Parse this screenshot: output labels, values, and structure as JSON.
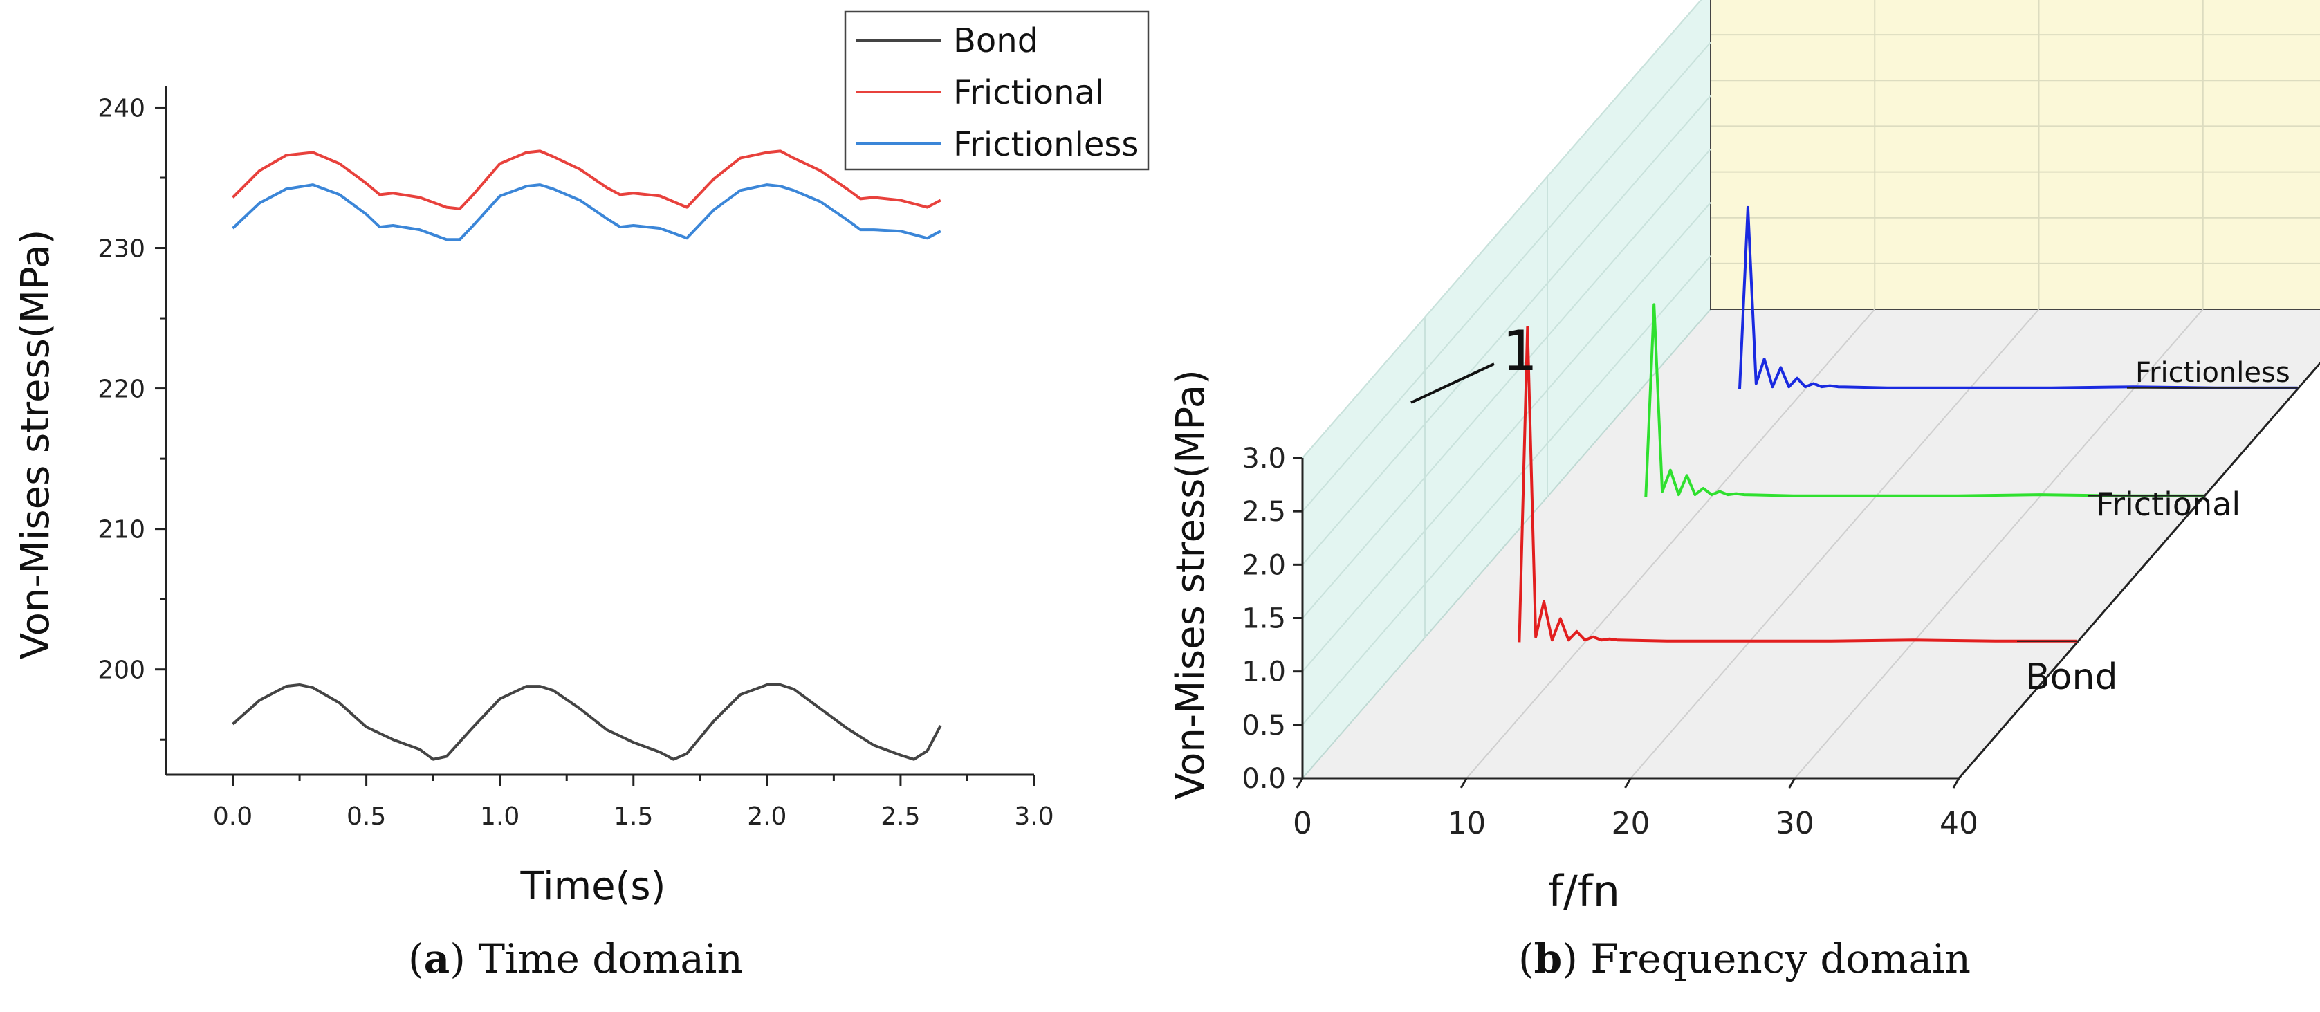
{
  "captions": {
    "a_label": "a",
    "a_text": "Time domain",
    "b_label": "b",
    "b_text": "Frequency domain"
  },
  "chart_data": [
    {
      "id": "a",
      "type": "line",
      "title": "",
      "xlabel": "Time(s)",
      "ylabel": "Von-Mises stress(MPa)",
      "xlim": [
        -0.25,
        3.0
      ],
      "ylim": [
        192.5,
        241.5
      ],
      "xticks": [
        "0.0",
        "0.5",
        "1.0",
        "1.5",
        "2.0",
        "2.5",
        "3.0"
      ],
      "yticks": [
        "200",
        "210",
        "220",
        "230",
        "240"
      ],
      "grid": false,
      "legend": {
        "placement": "top-right",
        "entries": [
          "Bond",
          "Frictional",
          "Frictionless"
        ]
      },
      "series": [
        {
          "name": "Bond",
          "color": "#444444",
          "x": [
            0.0,
            0.1,
            0.2,
            0.25,
            0.3,
            0.4,
            0.5,
            0.6,
            0.7,
            0.75,
            0.8,
            0.9,
            1.0,
            1.1,
            1.15,
            1.2,
            1.3,
            1.4,
            1.5,
            1.6,
            1.65,
            1.7,
            1.8,
            1.9,
            2.0,
            2.05,
            2.1,
            2.2,
            2.3,
            2.4,
            2.5,
            2.55,
            2.6,
            2.65
          ],
          "y": [
            196.1,
            197.8,
            198.8,
            198.9,
            198.7,
            197.6,
            195.9,
            195.0,
            194.3,
            193.6,
            193.8,
            195.9,
            197.9,
            198.8,
            198.8,
            198.5,
            197.2,
            195.7,
            194.8,
            194.1,
            193.6,
            194.0,
            196.3,
            198.2,
            198.9,
            198.9,
            198.6,
            197.2,
            195.8,
            194.6,
            193.9,
            193.6,
            194.2,
            196.0
          ]
        },
        {
          "name": "Frictional",
          "color": "#e8413c",
          "x": [
            0.0,
            0.1,
            0.2,
            0.3,
            0.4,
            0.5,
            0.55,
            0.6,
            0.7,
            0.8,
            0.85,
            0.9,
            1.0,
            1.1,
            1.15,
            1.2,
            1.3,
            1.4,
            1.45,
            1.5,
            1.6,
            1.7,
            1.8,
            1.9,
            2.0,
            2.05,
            2.1,
            2.2,
            2.3,
            2.35,
            2.4,
            2.5,
            2.6,
            2.65
          ],
          "y": [
            233.6,
            235.5,
            236.6,
            236.8,
            236.0,
            234.6,
            233.8,
            233.9,
            233.6,
            232.9,
            232.8,
            233.8,
            236.0,
            236.8,
            236.9,
            236.5,
            235.6,
            234.3,
            233.8,
            233.9,
            233.7,
            232.9,
            234.9,
            236.4,
            236.8,
            236.9,
            236.4,
            235.5,
            234.2,
            233.5,
            233.6,
            233.4,
            232.9,
            233.4
          ]
        },
        {
          "name": "Frictionless",
          "color": "#3b86d8",
          "x": [
            0.0,
            0.1,
            0.2,
            0.3,
            0.4,
            0.5,
            0.55,
            0.6,
            0.7,
            0.8,
            0.85,
            0.9,
            1.0,
            1.1,
            1.15,
            1.2,
            1.3,
            1.4,
            1.45,
            1.5,
            1.6,
            1.7,
            1.8,
            1.9,
            2.0,
            2.05,
            2.1,
            2.2,
            2.3,
            2.35,
            2.4,
            2.5,
            2.6,
            2.65
          ],
          "y": [
            231.4,
            233.2,
            234.2,
            234.5,
            233.8,
            232.4,
            231.5,
            231.6,
            231.3,
            230.6,
            230.6,
            231.6,
            233.7,
            234.4,
            234.5,
            234.2,
            233.4,
            232.1,
            231.5,
            231.6,
            231.4,
            230.7,
            232.7,
            234.1,
            234.5,
            234.4,
            234.1,
            233.3,
            232.0,
            231.3,
            231.3,
            231.2,
            230.7,
            231.2
          ]
        }
      ]
    },
    {
      "id": "b",
      "type": "line",
      "title": "",
      "xlabel": "f/fn",
      "ylabel": "Von-Mises stress(MPa)",
      "xlim": [
        0,
        40
      ],
      "ylim": [
        0.0,
        3.0
      ],
      "xticks": [
        "0",
        "10",
        "20",
        "30",
        "40"
      ],
      "yticks": [
        "0.0",
        "0.5",
        "1.0",
        "1.5",
        "2.0",
        "2.5",
        "3.0"
      ],
      "annotation": "1",
      "series_labels": [
        "Bond",
        "Frictional",
        "Frictionless"
      ],
      "series": [
        {
          "name": "Bond",
          "color": "#e21f1f",
          "x": [
            6,
            6.5,
            7,
            7.5,
            8,
            8.5,
            9,
            9.5,
            10,
            10.5,
            11,
            11.5,
            12,
            15,
            20,
            25,
            30,
            35,
            40
          ],
          "y": [
            0.0,
            2.95,
            0.05,
            0.38,
            0.02,
            0.22,
            0.02,
            0.1,
            0.02,
            0.05,
            0.02,
            0.03,
            0.02,
            0.01,
            0.01,
            0.01,
            0.02,
            0.01,
            0.01
          ]
        },
        {
          "name": "Frictional",
          "color": "#2fe02f",
          "x": [
            6,
            6.5,
            7,
            7.5,
            8,
            8.5,
            9,
            9.5,
            10,
            10.5,
            11,
            11.5,
            12,
            15,
            20,
            25,
            30,
            35,
            40
          ],
          "y": [
            0.0,
            1.8,
            0.05,
            0.25,
            0.02,
            0.2,
            0.02,
            0.08,
            0.02,
            0.05,
            0.02,
            0.03,
            0.02,
            0.01,
            0.01,
            0.01,
            0.02,
            0.01,
            0.01
          ]
        },
        {
          "name": "Frictionless",
          "color": "#1a2ae0",
          "x": [
            6,
            6.5,
            7,
            7.5,
            8,
            8.5,
            9,
            9.5,
            10,
            10.5,
            11,
            11.5,
            12,
            15,
            20,
            25,
            30,
            35,
            40
          ],
          "y": [
            0.0,
            1.7,
            0.05,
            0.28,
            0.02,
            0.2,
            0.02,
            0.1,
            0.02,
            0.05,
            0.02,
            0.03,
            0.02,
            0.01,
            0.01,
            0.01,
            0.02,
            0.01,
            0.01
          ]
        }
      ]
    }
  ]
}
